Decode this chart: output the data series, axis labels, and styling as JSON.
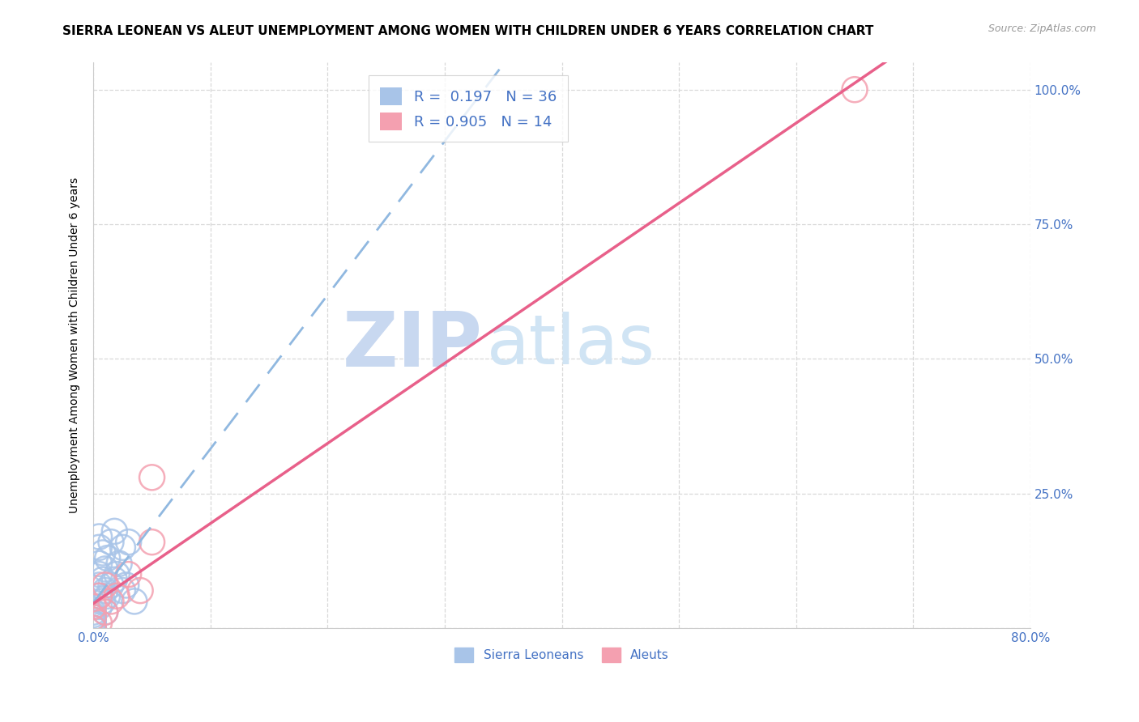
{
  "title": "SIERRA LEONEAN VS ALEUT UNEMPLOYMENT AMONG WOMEN WITH CHILDREN UNDER 6 YEARS CORRELATION CHART",
  "source": "Source: ZipAtlas.com",
  "ylabel": "Unemployment Among Women with Children Under 6 years",
  "xlim": [
    0.0,
    0.8
  ],
  "ylim": [
    0.0,
    1.05
  ],
  "xticks": [
    0.0,
    0.1,
    0.2,
    0.3,
    0.4,
    0.5,
    0.6,
    0.7,
    0.8
  ],
  "xticklabels": [
    "0.0%",
    "",
    "",
    "",
    "",
    "",
    "",
    "",
    "80.0%"
  ],
  "yticks": [
    0.0,
    0.25,
    0.5,
    0.75,
    1.0
  ],
  "yticklabels": [
    "",
    "25.0%",
    "50.0%",
    "75.0%",
    "100.0%"
  ],
  "legend_R_blue": "0.197",
  "legend_N_blue": "36",
  "legend_R_pink": "0.905",
  "legend_N_pink": "14",
  "sierra_leonean_x": [
    0.0,
    0.0,
    0.0,
    0.0,
    0.0,
    0.0,
    0.0,
    0.0,
    0.0,
    0.0,
    0.005,
    0.005,
    0.005,
    0.005,
    0.005,
    0.005,
    0.005,
    0.008,
    0.008,
    0.008,
    0.01,
    0.01,
    0.01,
    0.012,
    0.012,
    0.015,
    0.015,
    0.018,
    0.018,
    0.02,
    0.022,
    0.025,
    0.025,
    0.028,
    0.03,
    0.035
  ],
  "sierra_leonean_y": [
    0.0,
    0.0,
    0.01,
    0.02,
    0.03,
    0.0,
    0.01,
    0.005,
    0.015,
    0.025,
    0.04,
    0.06,
    0.08,
    0.1,
    0.12,
    0.15,
    0.17,
    0.05,
    0.09,
    0.14,
    0.03,
    0.07,
    0.11,
    0.06,
    0.13,
    0.08,
    0.16,
    0.09,
    0.18,
    0.1,
    0.12,
    0.07,
    0.15,
    0.08,
    0.16,
    0.05
  ],
  "aleut_x": [
    0.0,
    0.0,
    0.0,
    0.005,
    0.005,
    0.01,
    0.01,
    0.015,
    0.02,
    0.03,
    0.04,
    0.05,
    0.05,
    0.65
  ],
  "aleut_y": [
    0.0,
    0.02,
    0.04,
    0.01,
    0.06,
    0.03,
    0.08,
    0.05,
    0.06,
    0.1,
    0.07,
    0.16,
    0.28,
    1.0
  ],
  "blue_scatter_color": "#a8c4e8",
  "pink_scatter_color": "#f4a0b0",
  "blue_line_color": "#90b8e0",
  "pink_line_color": "#e8608a",
  "grid_color": "#d8d8d8",
  "watermark_zip_color": "#c8d8f0",
  "watermark_atlas_color": "#d8e8f8",
  "scatter_size": 500,
  "title_fontsize": 11,
  "axis_label_fontsize": 10,
  "tick_fontsize": 11
}
